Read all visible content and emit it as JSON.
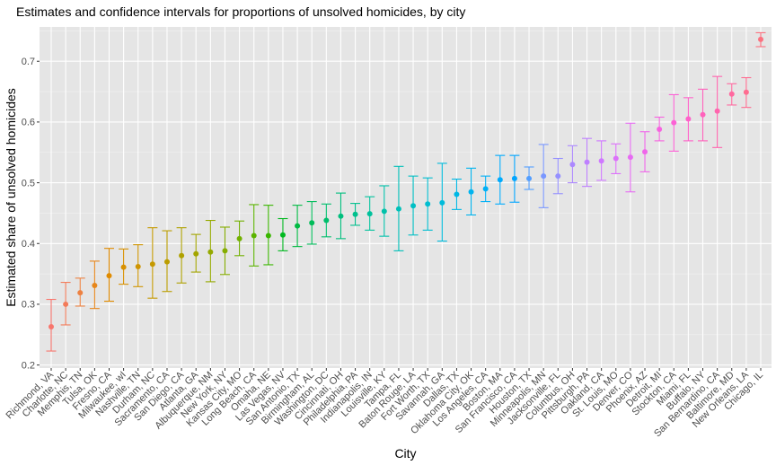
{
  "chart_data": {
    "type": "errorbar",
    "title": "Estimates and confidence intervals for proportions of unsolved homicides, by city",
    "xlabel": "City",
    "ylabel": "Estimated share of unsolved homicides",
    "ylim": [
      0.2,
      0.75
    ],
    "yticks": [
      0.2,
      0.3,
      0.4,
      0.5,
      0.6,
      0.7
    ],
    "grid": true,
    "legend": "none",
    "background": "#e5e5e5",
    "points": [
      {
        "city": "Richmond, VA",
        "estimate": 0.263,
        "lower": 0.223,
        "upper": 0.308
      },
      {
        "city": "Charlotte, NC",
        "estimate": 0.3,
        "lower": 0.266,
        "upper": 0.336
      },
      {
        "city": "Memphis, TN",
        "estimate": 0.319,
        "lower": 0.297,
        "upper": 0.343
      },
      {
        "city": "Tulsa, OK",
        "estimate": 0.331,
        "lower": 0.293,
        "upper": 0.371
      },
      {
        "city": "Fresno, CA",
        "estimate": 0.347,
        "lower": 0.305,
        "upper": 0.392
      },
      {
        "city": "Milwaukee, wI",
        "estimate": 0.361,
        "lower": 0.333,
        "upper": 0.391
      },
      {
        "city": "Nashville, TN",
        "estimate": 0.362,
        "lower": 0.329,
        "upper": 0.398
      },
      {
        "city": "Durham, NC",
        "estimate": 0.366,
        "lower": 0.31,
        "upper": 0.426
      },
      {
        "city": "Sacramento, CA",
        "estimate": 0.37,
        "lower": 0.321,
        "upper": 0.421
      },
      {
        "city": "San Diego, CA",
        "estimate": 0.38,
        "lower": 0.335,
        "upper": 0.426
      },
      {
        "city": "Atlanta, GA",
        "estimate": 0.383,
        "lower": 0.353,
        "upper": 0.415
      },
      {
        "city": "Albuquerque, NM",
        "estimate": 0.386,
        "lower": 0.337,
        "upper": 0.438
      },
      {
        "city": "New York, NY",
        "estimate": 0.388,
        "lower": 0.349,
        "upper": 0.427
      },
      {
        "city": "Kansas City, MO",
        "estimate": 0.408,
        "lower": 0.38,
        "upper": 0.437
      },
      {
        "city": "Long Beach, CA",
        "estimate": 0.413,
        "lower": 0.363,
        "upper": 0.464
      },
      {
        "city": "Omaha, NE",
        "estimate": 0.413,
        "lower": 0.365,
        "upper": 0.463
      },
      {
        "city": "Las Vegas, NV",
        "estimate": 0.414,
        "lower": 0.388,
        "upper": 0.441
      },
      {
        "city": "San Antonio, TX",
        "estimate": 0.429,
        "lower": 0.395,
        "upper": 0.463
      },
      {
        "city": "Birmingham, AL",
        "estimate": 0.434,
        "lower": 0.399,
        "upper": 0.469
      },
      {
        "city": "Washington, DC",
        "estimate": 0.438,
        "lower": 0.411,
        "upper": 0.465
      },
      {
        "city": "Cincinnati, OH",
        "estimate": 0.445,
        "lower": 0.408,
        "upper": 0.483
      },
      {
        "city": "Philadelphia, PA",
        "estimate": 0.448,
        "lower": 0.43,
        "upper": 0.466
      },
      {
        "city": "Indianapolis, IN",
        "estimate": 0.449,
        "lower": 0.422,
        "upper": 0.477
      },
      {
        "city": "Louisville, KY",
        "estimate": 0.453,
        "lower": 0.412,
        "upper": 0.495
      },
      {
        "city": "Tampa, FL",
        "estimate": 0.457,
        "lower": 0.388,
        "upper": 0.527
      },
      {
        "city": "Baton Rouge, LA",
        "estimate": 0.462,
        "lower": 0.414,
        "upper": 0.511
      },
      {
        "city": "Fort Worth, TX",
        "estimate": 0.465,
        "lower": 0.422,
        "upper": 0.508
      },
      {
        "city": "Savannah, GA",
        "estimate": 0.467,
        "lower": 0.404,
        "upper": 0.532
      },
      {
        "city": "Dallas, TX",
        "estimate": 0.481,
        "lower": 0.456,
        "upper": 0.506
      },
      {
        "city": "Oklahoma City, OK",
        "estimate": 0.485,
        "lower": 0.447,
        "upper": 0.524
      },
      {
        "city": "Los Angeles, CA",
        "estimate": 0.49,
        "lower": 0.469,
        "upper": 0.511
      },
      {
        "city": "Boston, MA",
        "estimate": 0.505,
        "lower": 0.465,
        "upper": 0.545
      },
      {
        "city": "San Francisco, CA",
        "estimate": 0.507,
        "lower": 0.468,
        "upper": 0.545
      },
      {
        "city": "Houston, TX",
        "estimate": 0.507,
        "lower": 0.489,
        "upper": 0.526
      },
      {
        "city": "Minneapolis, MN",
        "estimate": 0.511,
        "lower": 0.459,
        "upper": 0.563
      },
      {
        "city": "Jacksonville, FL",
        "estimate": 0.511,
        "lower": 0.482,
        "upper": 0.54
      },
      {
        "city": "Columbus, OH",
        "estimate": 0.53,
        "lower": 0.5,
        "upper": 0.561
      },
      {
        "city": "Pittsburgh, PA",
        "estimate": 0.534,
        "lower": 0.494,
        "upper": 0.573
      },
      {
        "city": "Oakland, CA",
        "estimate": 0.536,
        "lower": 0.504,
        "upper": 0.569
      },
      {
        "city": "St. Louis, MO",
        "estimate": 0.54,
        "lower": 0.515,
        "upper": 0.564
      },
      {
        "city": "Denver, CO",
        "estimate": 0.542,
        "lower": 0.485,
        "upper": 0.598
      },
      {
        "city": "Phoenix, AZ",
        "estimate": 0.551,
        "lower": 0.518,
        "upper": 0.584
      },
      {
        "city": "Detroit, MI",
        "estimate": 0.588,
        "lower": 0.569,
        "upper": 0.608
      },
      {
        "city": "Stockton, CA",
        "estimate": 0.599,
        "lower": 0.552,
        "upper": 0.645
      },
      {
        "city": "Miami, FL",
        "estimate": 0.605,
        "lower": 0.569,
        "upper": 0.64
      },
      {
        "city": "Buffalo, NY",
        "estimate": 0.612,
        "lower": 0.569,
        "upper": 0.654
      },
      {
        "city": "San Bernardino, CA",
        "estimate": 0.618,
        "lower": 0.558,
        "upper": 0.675
      },
      {
        "city": "Baltimore, MD",
        "estimate": 0.646,
        "lower": 0.628,
        "upper": 0.663
      },
      {
        "city": "New Orleans, LA",
        "estimate": 0.649,
        "lower": 0.624,
        "upper": 0.673
      },
      {
        "city": "Chicago, IL",
        "estimate": 0.736,
        "lower": 0.724,
        "upper": 0.747
      }
    ]
  }
}
